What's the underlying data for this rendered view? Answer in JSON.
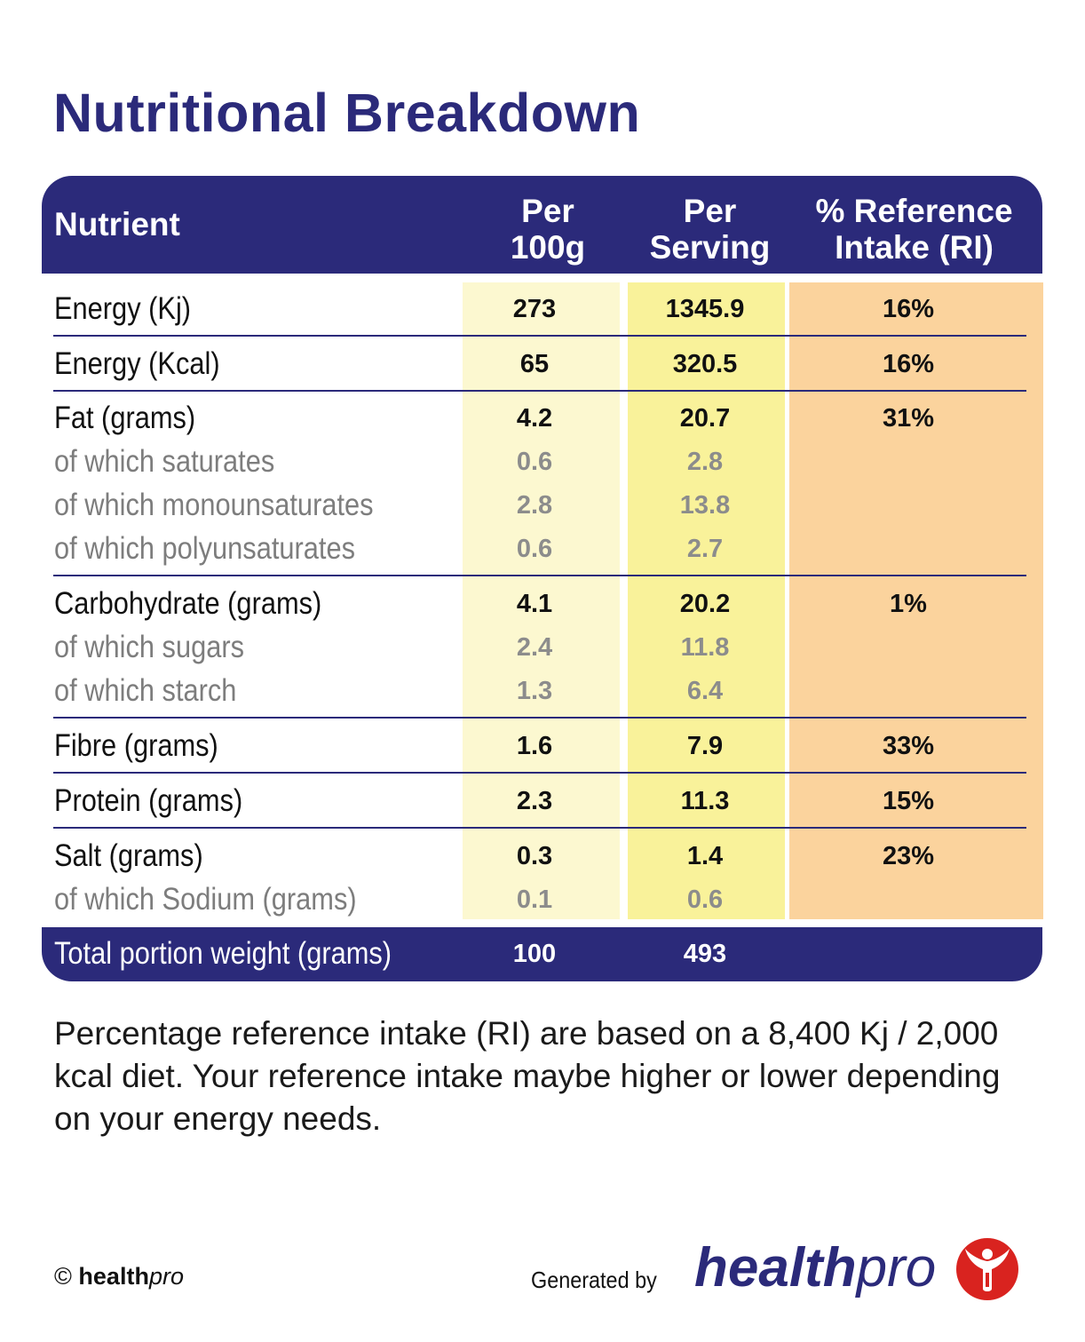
{
  "title": "Nutritional Breakdown",
  "header": {
    "nutrient": "Nutrient",
    "per100_l1": "Per",
    "per100_l2": "100g",
    "serving_l1": "Per",
    "serving_l2": "Serving",
    "ri_l1": "% Reference",
    "ri_l2": "Intake (RI)"
  },
  "rows": [
    {
      "label": "Energy (Kj)",
      "per100": "273",
      "serving": "1345.9",
      "ri": "16%"
    },
    {
      "label": "Energy (Kcal)",
      "per100": "65",
      "serving": "320.5",
      "ri": "16%"
    },
    {
      "label": "Fat (grams)",
      "per100": "4.2",
      "serving": "20.7",
      "ri": "31%"
    },
    {
      "label": "of which saturates",
      "per100": "0.6",
      "serving": "2.8"
    },
    {
      "label": "of which monounsaturates",
      "per100": "2.8",
      "serving": "13.8"
    },
    {
      "label": "of which polyunsaturates",
      "per100": "0.6",
      "serving": "2.7"
    },
    {
      "label": "Carbohydrate (grams)",
      "per100": "4.1",
      "serving": "20.2",
      "ri": "1%"
    },
    {
      "label": "of which sugars",
      "per100": "2.4",
      "serving": "11.8"
    },
    {
      "label": "of which starch",
      "per100": "1.3",
      "serving": "6.4"
    },
    {
      "label": "Fibre (grams)",
      "per100": "1.6",
      "serving": "7.9",
      "ri": "33%"
    },
    {
      "label": "Protein (grams)",
      "per100": "2.3",
      "serving": "11.3",
      "ri": "15%"
    },
    {
      "label": "Salt (grams)",
      "per100": "0.3",
      "serving": "1.4",
      "ri": "23%"
    },
    {
      "label": "of which Sodium (grams)",
      "per100": "0.1",
      "serving": "0.6"
    }
  ],
  "total": {
    "label": "Total portion weight (grams)",
    "per100": "100",
    "serving": "493"
  },
  "note": "Percentage reference intake (RI) are based on a 8,400 Kj / 2,000 kcal diet. Your reference intake maybe higher or lower depending on your energy needs.",
  "footer": {
    "copyright_symbol": "©",
    "copyright_bold": "health",
    "copyright_italic": "pro",
    "generated_by": "Generated by",
    "logo_bold": "health",
    "logo_light": "pro"
  },
  "colors": {
    "navy": "#2b2a7a",
    "per100_bg": "#fcf8d0",
    "serving_bg": "#f9f29a",
    "ri_bg": "#fbd39d",
    "logo_red": "#d9231f"
  }
}
